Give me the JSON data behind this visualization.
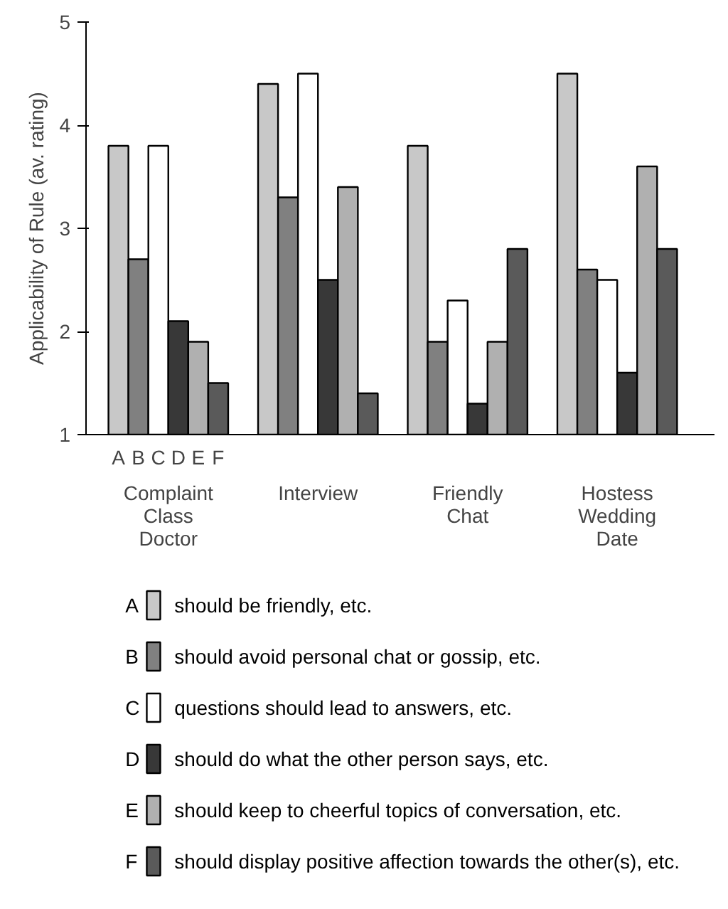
{
  "chart_data": {
    "type": "bar",
    "ylabel": "Applicability of Rule (av. rating)",
    "categories": [
      "Complaint\nClass\nDoctor",
      "Interview",
      "Friendly\nChat",
      "Hostess\nWedding\nDate"
    ],
    "series": [
      {
        "name": "A",
        "color": "#c8c8c8",
        "values": [
          3.8,
          4.4,
          3.8,
          4.5
        ]
      },
      {
        "name": "B",
        "color": "#808080",
        "values": [
          2.7,
          3.3,
          1.9,
          2.6
        ]
      },
      {
        "name": "C",
        "color": "#ffffff",
        "values": [
          3.8,
          4.5,
          2.3,
          2.5
        ]
      },
      {
        "name": "D",
        "color": "#383838",
        "values": [
          2.1,
          2.5,
          1.3,
          1.6
        ]
      },
      {
        "name": "E",
        "color": "#b0b0b0",
        "values": [
          1.9,
          3.4,
          1.9,
          3.6
        ]
      },
      {
        "name": "F",
        "color": "#5a5a5a",
        "values": [
          1.5,
          1.4,
          2.8,
          2.8
        ]
      }
    ],
    "annotations": [
      "should be friendly, etc.",
      "should avoid personal chat or gossip, etc.",
      "questions should lead to answers, etc.",
      "should do what the other person says, etc.",
      "should keep to cheerful topics of conversation, etc.",
      "should display positive affection towards the other(s), etc."
    ],
    "ylim": [
      1,
      5
    ],
    "yticks": [
      1,
      2,
      3,
      4,
      5
    ],
    "grid": false,
    "legend": "bottom"
  }
}
